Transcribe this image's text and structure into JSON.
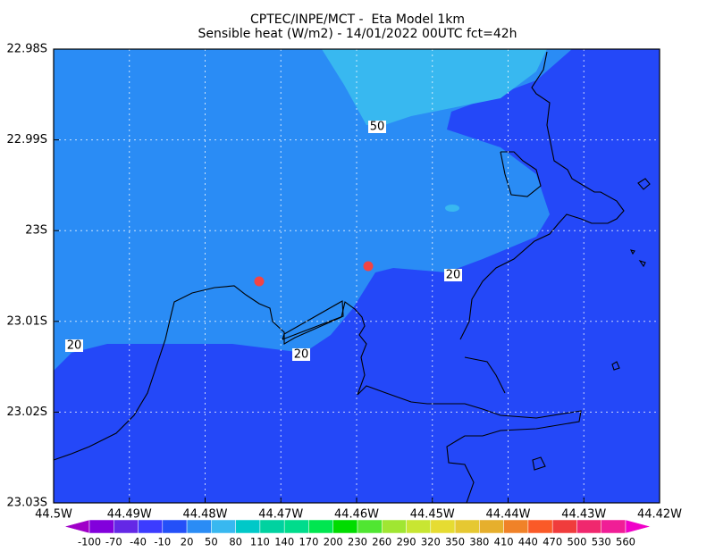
{
  "title": [
    "CPTEC/INPE/MCT -  Eta Model 1km",
    "Sensible heat (W/m2) - 14/01/2022 00UTC fct=42h"
  ],
  "x_axis": {
    "labels": [
      "44.5W",
      "44.49W",
      "44.48W",
      "44.47W",
      "44.46W",
      "44.45W",
      "44.44W",
      "44.43W",
      "44.42W"
    ]
  },
  "y_axis": {
    "labels": [
      "22.98S",
      "22.99S",
      "23S",
      "23.01S",
      "23.02S",
      "23.03S"
    ]
  },
  "contour_labels": [
    "50",
    "20",
    "20",
    "20"
  ],
  "colorbar": {
    "labels": [
      -100,
      -70,
      -40,
      -10,
      20,
      50,
      80,
      110,
      140,
      170,
      200,
      230,
      260,
      290,
      320,
      350,
      380,
      410,
      440,
      470,
      500,
      530,
      560
    ],
    "colors": [
      "#a000c8",
      "#8200dc",
      "#6428e6",
      "#3c3cff",
      "#2450f8",
      "#2a8cf5",
      "#38b8f0",
      "#00c8c8",
      "#00d2a0",
      "#00dc8c",
      "#00e650",
      "#00dc00",
      "#50e632",
      "#a0e632",
      "#c8e632",
      "#e6dc32",
      "#e6c832",
      "#e6af2d",
      "#f08228",
      "#fa5a28",
      "#f03c3c",
      "#f0286e",
      "#f01e96",
      "#f000c8"
    ]
  }
}
